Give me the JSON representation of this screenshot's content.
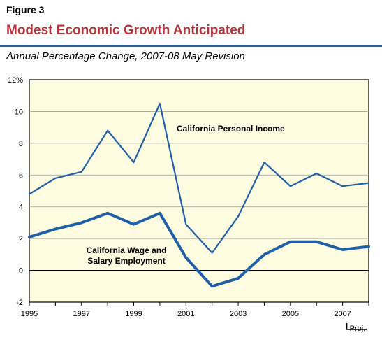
{
  "figure_label": "Figure 3",
  "title": "Modest Economic Growth Anticipated",
  "subtitle": "Annual Percentage Change, 2007-08 May Revision",
  "colors": {
    "title": "#b5343a",
    "rule": "#2e5f99",
    "plot_background": "#fdfbe0",
    "series": "#1f5fa8"
  },
  "chart_data": {
    "type": "line",
    "x": [
      1995,
      1996,
      1997,
      1998,
      1999,
      2000,
      2001,
      2002,
      2003,
      2004,
      2005,
      2006,
      2007,
      2008
    ],
    "xticks": [
      "1995",
      "1997",
      "1999",
      "2001",
      "2003",
      "2005",
      "2007"
    ],
    "xtick_values": [
      1995,
      1997,
      1999,
      2001,
      2003,
      2005,
      2007
    ],
    "xlim": [
      1995,
      2008
    ],
    "ylim": [
      -2,
      12
    ],
    "yticks": [
      "-2",
      "0",
      "2",
      "4",
      "6",
      "8",
      "10",
      "12%"
    ],
    "ytick_values": [
      -2,
      0,
      2,
      4,
      6,
      8,
      10,
      12
    ],
    "grid": true,
    "projection_label": "Proj.",
    "projection_range": [
      2007,
      2008
    ],
    "series": [
      {
        "name": "California Personal Income",
        "values": [
          4.8,
          5.8,
          6.2,
          8.8,
          6.8,
          10.5,
          2.9,
          1.1,
          3.4,
          6.8,
          5.3,
          6.1,
          5.3,
          5.5
        ],
        "line_style": "thin",
        "label_lines": [
          "California Personal Income"
        ]
      },
      {
        "name": "California Wage and Salary Employment",
        "values": [
          2.1,
          2.6,
          3.0,
          3.6,
          2.9,
          3.6,
          0.8,
          -1.0,
          -0.5,
          1.0,
          1.8,
          1.8,
          1.3,
          1.5
        ],
        "line_style": "thick",
        "label_lines": [
          "California Wage and",
          "Salary Employment"
        ]
      }
    ]
  }
}
